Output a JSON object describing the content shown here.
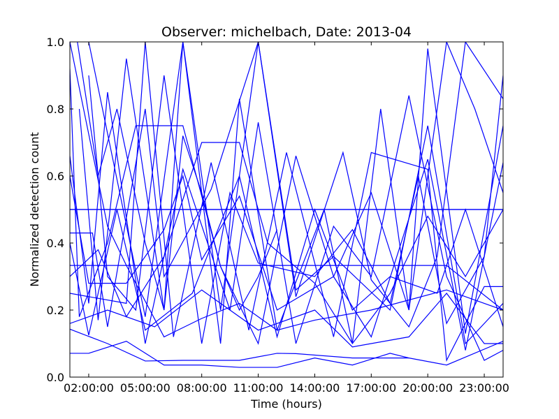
{
  "chart_data": {
    "type": "line",
    "title": "Observer: michelbach, Date: 2013-04",
    "xlabel": "Time (hours)",
    "ylabel": "Normalized detection count",
    "xlim": [
      1,
      24
    ],
    "ylim": [
      0.0,
      1.0
    ],
    "x_tick_values": [
      2,
      5,
      8,
      11,
      14,
      17,
      20,
      23
    ],
    "x_tick_labels": [
      "02:00:00",
      "05:00:00",
      "08:00:00",
      "11:00:00",
      "14:00:00",
      "17:00:00",
      "20:00:00",
      "23:00:00"
    ],
    "y_tick_values": [
      0.0,
      0.2,
      0.4,
      0.6,
      0.8,
      1.0
    ],
    "y_tick_labels": [
      "0.0",
      "0.2",
      "0.4",
      "0.6",
      "0.8",
      "1.0"
    ],
    "grid": false,
    "legend": "none",
    "line_color": "#0000ff",
    "series": [
      {
        "x": [
          1,
          24
        ],
        "y": [
          0.5,
          0.5
        ]
      },
      {
        "x": [
          1,
          24
        ],
        "y": [
          0.5,
          0.5
        ]
      },
      {
        "x": [
          1,
          5,
          9,
          11,
          15,
          18,
          21,
          24
        ],
        "y": [
          0.333,
          0.333,
          0.333,
          0.333,
          0.333,
          0.333,
          0.333,
          0.2
        ]
      },
      {
        "x": [
          1,
          2,
          4,
          6,
          8,
          10,
          12,
          14,
          16,
          18,
          19,
          21,
          24
        ],
        "y": [
          0.071,
          0.071,
          0.107,
          0.036,
          0.036,
          0.029,
          0.029,
          0.057,
          0.036,
          0.071,
          0.057,
          0.036,
          0.107
        ]
      },
      {
        "x": [
          1,
          3,
          5,
          7,
          10,
          12,
          13,
          16,
          19
        ],
        "y": [
          0.143,
          0.1,
          0.048,
          0.05,
          0.05,
          0.071,
          0.07,
          0.057,
          0.057
        ]
      },
      {
        "x": [
          1,
          3,
          4,
          6,
          8,
          10,
          12,
          14,
          17,
          21,
          24
        ],
        "y": [
          1.0,
          0.45,
          0.333,
          0.12,
          0.175,
          0.22,
          0.14,
          0.17,
          0.2,
          0.26,
          0.2
        ]
      },
      {
        "x": [
          1.4,
          2.5,
          3.5,
          5,
          6,
          7,
          8,
          9,
          10,
          11,
          12
        ],
        "y": [
          1.0,
          0.6,
          0.8,
          0.4,
          0.2,
          0.72,
          0.55,
          0.33,
          0.2,
          0.3,
          0.44
        ]
      },
      {
        "x": [
          2,
          5,
          7,
          9,
          11,
          13,
          15,
          18,
          20,
          22,
          24
        ],
        "y": [
          1.0,
          0.18,
          1.0,
          0.2,
          1.0,
          0.26,
          0.36,
          0.2,
          0.75,
          0.1,
          0.22
        ]
      },
      {
        "x": [
          1,
          1.5,
          3,
          4.5,
          7,
          9,
          11,
          13,
          15,
          17,
          19,
          20,
          22,
          24
        ],
        "y": [
          0.92,
          0.18,
          0.4,
          0.75,
          0.75,
          0.33,
          0.1,
          0.66,
          0.3,
          0.55,
          0.2,
          0.98,
          0.13,
          0.75
        ]
      },
      {
        "x": [
          1,
          2.5,
          4,
          6,
          8,
          10,
          11.5,
          14,
          16,
          18,
          20,
          22,
          24
        ],
        "y": [
          0.3,
          0.38,
          0.18,
          0.36,
          0.7,
          0.7,
          0.4,
          0.28,
          0.1,
          0.25,
          0.48,
          0.3,
          0.5
        ]
      },
      {
        "x": [
          1,
          2,
          3,
          5,
          7,
          9.5,
          11,
          13,
          15,
          17,
          19,
          21,
          23,
          24
        ],
        "y": [
          0.66,
          0.22,
          0.85,
          0.1,
          0.62,
          0.2,
          0.76,
          0.1,
          0.45,
          0.3,
          0.84,
          0.3,
          0.05,
          0.08
        ]
      },
      {
        "x": [
          1,
          4,
          5,
          6.5,
          8.5,
          10.5,
          12.5,
          15,
          17,
          20,
          21,
          23,
          24
        ],
        "y": [
          0.25,
          0.22,
          1.0,
          0.12,
          0.64,
          0.14,
          0.67,
          0.12,
          0.67,
          0.62,
          0.05,
          0.27,
          0.27
        ]
      },
      {
        "x": [
          1,
          2,
          3.5,
          5,
          7.5,
          10,
          12,
          14,
          16,
          18,
          20.5,
          22,
          24
        ],
        "y": [
          0.4,
          0.125,
          0.5,
          0.14,
          0.25,
          0.6,
          0.12,
          0.5,
          0.2,
          0.3,
          0.25,
          0.5,
          0.15
        ]
      },
      {
        "x": [
          1.5,
          2.5,
          4,
          6,
          7,
          9,
          10,
          12,
          14.5,
          16,
          17.5,
          19,
          21,
          22.5,
          24
        ],
        "y": [
          0.8,
          0.17,
          0.95,
          0.2,
          1.0,
          0.1,
          0.83,
          0.14,
          0.5,
          0.1,
          0.8,
          0.2,
          1.0,
          0.8,
          0.55
        ]
      },
      {
        "x": [
          1,
          3,
          5.5,
          8,
          11,
          14,
          16,
          19,
          21,
          23,
          24
        ],
        "y": [
          0.16,
          0.2,
          0.15,
          0.26,
          0.14,
          0.2,
          0.09,
          0.12,
          0.25,
          0.1,
          0.1
        ]
      },
      {
        "x": [
          2,
          3,
          4.5,
          6,
          8,
          9.5,
          11,
          14,
          16,
          18,
          19.5,
          21,
          23,
          24
        ],
        "y": [
          0.9,
          0.3,
          0.2,
          0.9,
          0.1,
          0.55,
          0.34,
          0.3,
          0.44,
          0.22,
          0.6,
          0.16,
          0.36,
          0.9
        ]
      },
      {
        "x": [
          1,
          2,
          4,
          6,
          7,
          8,
          10,
          12,
          15,
          17,
          20,
          22,
          24
        ],
        "y": [
          0.6,
          0.28,
          0.28,
          0.44,
          0.6,
          0.35,
          0.54,
          0.2,
          0.3,
          0.12,
          0.65,
          0.08,
          0.64
        ]
      },
      {
        "x": [
          1,
          2.2,
          3,
          5,
          6,
          8.5,
          11,
          13,
          15.5,
          17,
          19,
          20.5,
          22,
          24
        ],
        "y": [
          0.43,
          0.43,
          0.15,
          0.8,
          0.3,
          0.56,
          1.0,
          0.24,
          0.67,
          0.29,
          0.15,
          0.36,
          1.0,
          0.83
        ]
      }
    ]
  }
}
